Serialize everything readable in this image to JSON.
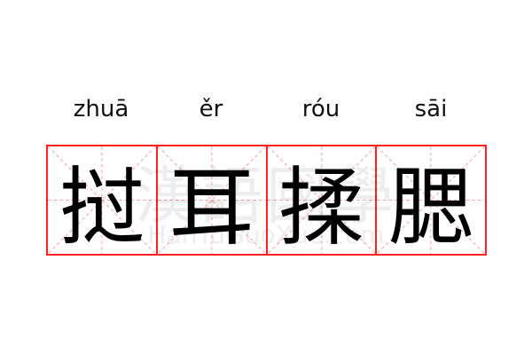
{
  "pinyin": [
    "zhuā",
    "ěr",
    "róu",
    "sāi"
  ],
  "characters": [
    "挝",
    "耳",
    "揉",
    "腮"
  ],
  "watermark": {
    "text": "漢語國學",
    "url": "HanYuGuoXue.com"
  },
  "colors": {
    "grid_border": "#ff2222",
    "guide_lines": "#f5a0a0"
  }
}
